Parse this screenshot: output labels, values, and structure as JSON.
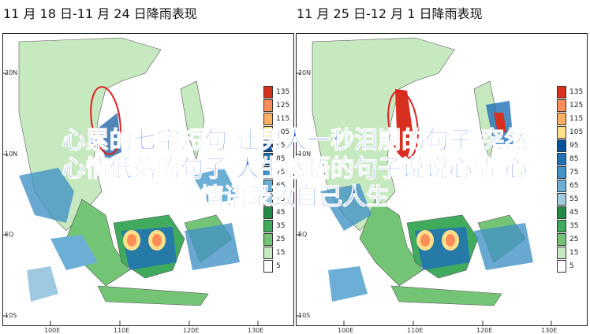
{
  "panels": [
    {
      "title": "11 月 18 日-11 月 24 日降雨表现"
    },
    {
      "title": "11 月 25 日-12 月 1 日降雨表现"
    }
  ],
  "axes": {
    "lat_labels": [
      "20N",
      "10N",
      "EQ",
      "10S"
    ],
    "lon_labels": [
      "100E",
      "110E",
      "120E",
      "130E"
    ]
  },
  "legend": {
    "values": [
      "135",
      "125",
      "115",
      "105",
      "95",
      "85",
      "75",
      "65",
      "55",
      "45",
      "35",
      "25",
      "15",
      "5"
    ],
    "colors": [
      "#d7301f",
      "#fc8d59",
      "#fdae61",
      "#fee08b",
      "#08519c",
      "#2171b5",
      "#4292c6",
      "#6baed6",
      "#9ecae1",
      "#238b45",
      "#41ab5d",
      "#74c476",
      "#c7e9c0",
      "#ffffff"
    ]
  },
  "overlay": {
    "line1": "心累的七字短句 让男人一秒泪崩的句子 突然",
    "line2": "心情低落的句子 人生感悟的句子说说心情 心",
    "line3": "情语录致自己人生"
  }
}
